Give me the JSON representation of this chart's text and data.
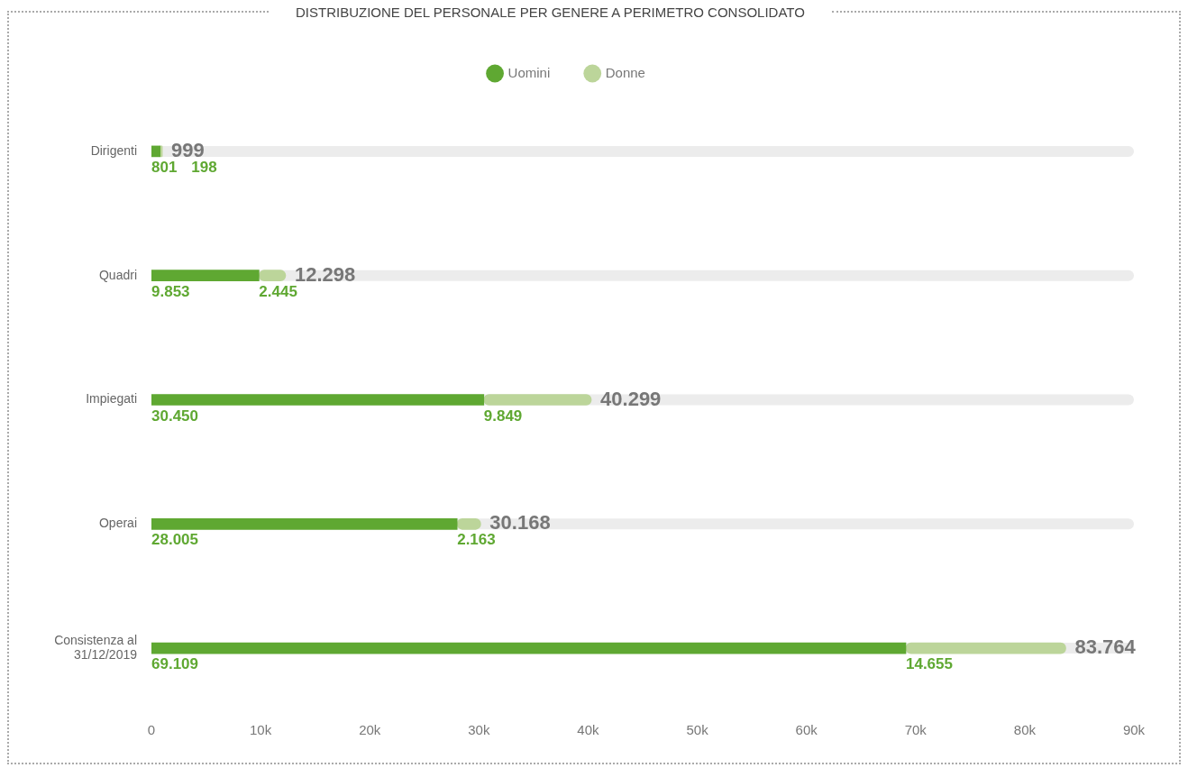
{
  "chart_data": {
    "type": "bar",
    "orientation": "horizontal",
    "stacked": true,
    "title": "DISTRIBUZIONE DEL PERSONALE PER GENERE A PERIMETRO CONSOLIDATO",
    "categories": [
      "Dirigenti",
      "Quadri",
      "Impiegati",
      "Operai",
      "Consistenza al 31/12/2019"
    ],
    "series": [
      {
        "name": "Uomini",
        "color": "#5fa832",
        "values": [
          801,
          9853,
          30450,
          28005,
          69109
        ],
        "value_labels": [
          "801",
          "9.853",
          "30.450",
          "28.005",
          "69.109"
        ]
      },
      {
        "name": "Donne",
        "color": "#bcd59a",
        "values": [
          198,
          2445,
          9849,
          2163,
          14655
        ],
        "value_labels": [
          "198",
          "2.445",
          "9.849",
          "2.163",
          "14.655"
        ]
      }
    ],
    "totals": [
      "999",
      "12.298",
      "40.299",
      "30.168",
      "83.764"
    ],
    "xlim": [
      0,
      90000
    ],
    "xticks": [
      0,
      {
        "value": 10000,
        "label": "10k"
      },
      {
        "value": 20000,
        "label": "20k"
      },
      {
        "value": 30000,
        "label": "30k"
      },
      {
        "value": 40000,
        "label": "40k"
      },
      {
        "value": 50000,
        "label": "50k"
      },
      {
        "value": 60000,
        "label": "60k"
      },
      {
        "value": 70000,
        "label": "70k"
      },
      {
        "value": 80000,
        "label": "80k"
      },
      {
        "value": 90000,
        "label": "90k"
      }
    ],
    "grid": false,
    "legend": "top",
    "marker": "circle"
  }
}
